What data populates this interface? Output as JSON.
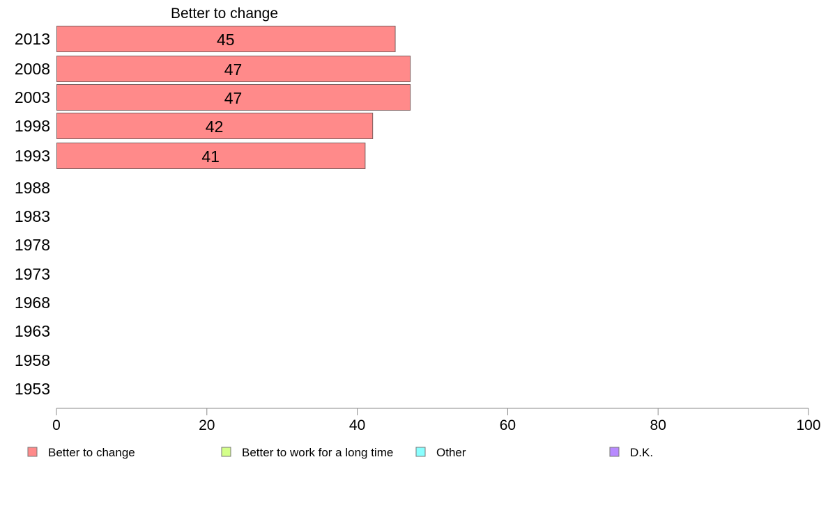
{
  "chart_data": {
    "type": "bar",
    "orientation": "horizontal",
    "title": "Better to change",
    "categories": [
      "2013",
      "2008",
      "2003",
      "1998",
      "1993",
      "1988",
      "1983",
      "1978",
      "1973",
      "1968",
      "1963",
      "1958",
      "1953"
    ],
    "series": [
      {
        "name": "Better to change",
        "values": [
          45,
          47,
          47,
          42,
          41,
          null,
          null,
          null,
          null,
          null,
          null,
          null,
          null
        ],
        "labels": [
          "45",
          "47",
          "47",
          "42",
          "41",
          "",
          "",
          "",
          "",
          "",
          "",
          "",
          ""
        ]
      }
    ],
    "xlim": [
      0,
      100
    ],
    "xticks": [
      "0",
      "20",
      "40",
      "60",
      "80",
      "100"
    ],
    "grid": false,
    "legend_placement": "bottom",
    "legend": [
      {
        "label": "Better to change",
        "color": "#ff8a8a"
      },
      {
        "label": "Better to work for a long time",
        "color": "#d4ff8a"
      },
      {
        "label": "Other",
        "color": "#8affff"
      },
      {
        "label": "D.K.",
        "color": "#b88aff"
      }
    ],
    "colors": {
      "bar": "#ff8a8a",
      "bar_stroke": "#7a5c5c",
      "axis": "#888888"
    }
  }
}
